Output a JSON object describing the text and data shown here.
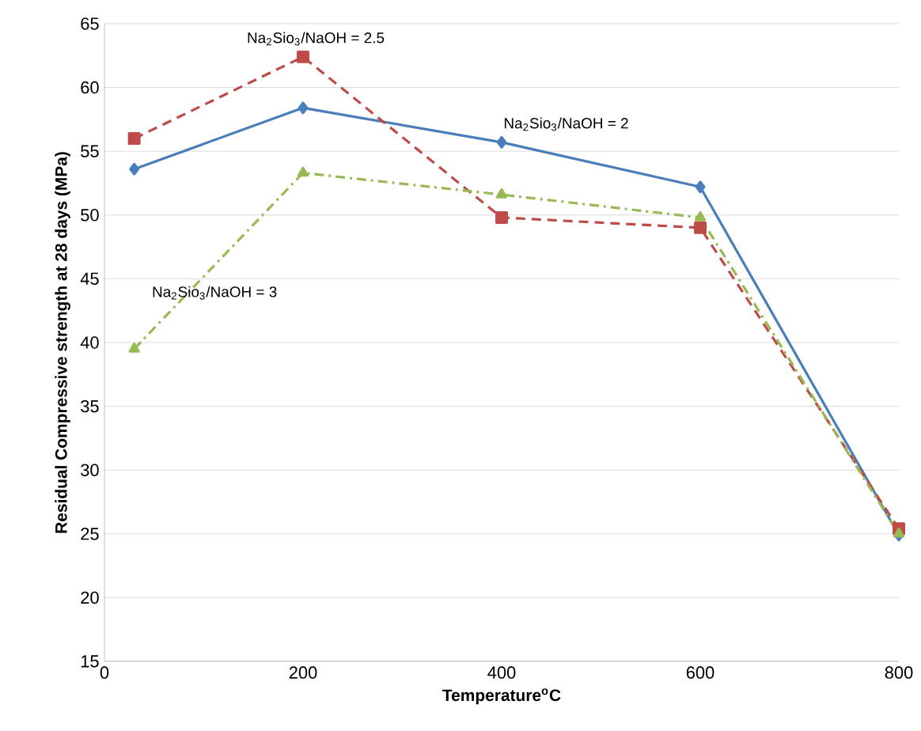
{
  "chart_data": {
    "type": "line",
    "xlabel": "Temperature$^{o}$C",
    "ylabel": "Residual Compressive strength at 28 days (MPa)",
    "xlim": [
      0,
      800
    ],
    "xticks": [
      0,
      200,
      400,
      600,
      800
    ],
    "ylim": [
      15,
      65
    ],
    "yticks": [
      15,
      20,
      25,
      30,
      35,
      40,
      45,
      50,
      55,
      60,
      65
    ],
    "grid": "y",
    "series": [
      {
        "name": "Na$_{2}$Sio$_{3}$/NaOH = 2",
        "color": "#4a7ebb",
        "marker": "diamond",
        "line_style": "solid",
        "x": [
          30,
          200,
          400,
          600,
          800
        ],
        "values": [
          53.6,
          58.4,
          55.7,
          52.2,
          24.9
        ]
      },
      {
        "name": "Na$_{2}$Sio$_{3}$/NaOH = 2.5",
        "color": "#be4b48",
        "marker": "square",
        "line_style": "dashed",
        "x": [
          30,
          200,
          400,
          600,
          800
        ],
        "values": [
          56.0,
          62.4,
          49.8,
          49.0,
          25.4
        ]
      },
      {
        "name": "Na$_{2}$Sio$_{3}$/NaOH = 3",
        "color": "#98b954",
        "marker": "triangle",
        "line_style": "dashdot",
        "x": [
          30,
          200,
          400,
          600,
          800
        ],
        "values": [
          39.5,
          53.3,
          51.6,
          49.8,
          25.0
        ]
      }
    ]
  }
}
